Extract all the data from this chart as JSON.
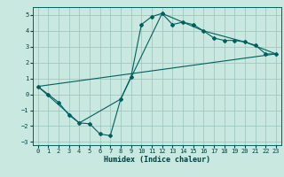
{
  "xlabel": "Humidex (Indice chaleur)",
  "background_color": "#c8e8e0",
  "grid_color": "#a0c8c0",
  "line_color": "#006060",
  "xlim": [
    -0.5,
    23.5
  ],
  "ylim": [
    -3.2,
    5.5
  ],
  "yticks": [
    -3,
    -2,
    -1,
    0,
    1,
    2,
    3,
    4,
    5
  ],
  "xticks": [
    0,
    1,
    2,
    3,
    4,
    5,
    6,
    7,
    8,
    9,
    10,
    11,
    12,
    13,
    14,
    15,
    16,
    17,
    18,
    19,
    20,
    21,
    22,
    23
  ],
  "line1_x": [
    0,
    1,
    2,
    3,
    4,
    5,
    6,
    7,
    8,
    9,
    10,
    11,
    12,
    13,
    14,
    15,
    16,
    17,
    18,
    19,
    20,
    21,
    22,
    23
  ],
  "line1_y": [
    0.5,
    0.0,
    -0.5,
    -1.3,
    -1.8,
    -1.85,
    -2.5,
    -2.6,
    -0.3,
    1.1,
    4.4,
    4.9,
    5.1,
    4.4,
    4.55,
    4.4,
    4.0,
    3.55,
    3.4,
    3.4,
    3.3,
    3.1,
    2.55,
    2.55
  ],
  "line2_x": [
    0,
    4,
    8,
    12,
    16,
    20,
    23
  ],
  "line2_y": [
    0.5,
    -1.8,
    -0.3,
    5.1,
    4.0,
    3.3,
    2.55
  ],
  "line3_x": [
    0,
    23
  ],
  "line3_y": [
    0.5,
    2.55
  ]
}
